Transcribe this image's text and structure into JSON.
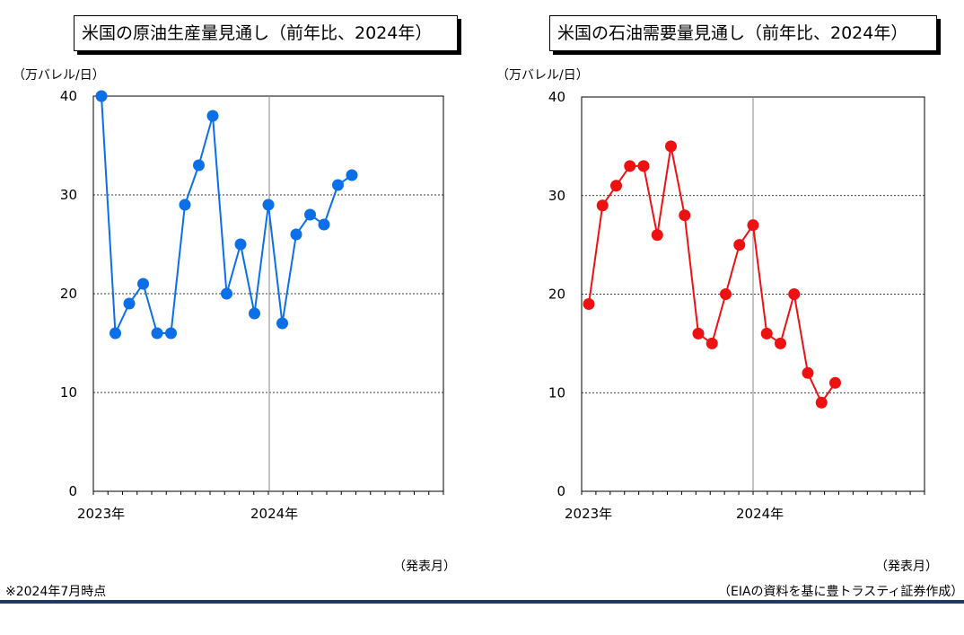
{
  "chart_data": [
    {
      "type": "line",
      "title": "米国の原油生産量見通し（前年比、2024年）",
      "ylabel": "（万バレル/日）",
      "xlabel": "（発表月）",
      "ylim": [
        0,
        40
      ],
      "yticks": [
        0,
        10,
        20,
        30,
        40
      ],
      "x_tick_labels": [
        "2023年",
        "2024年"
      ],
      "grid": true,
      "color": "#0b6fe8",
      "series": [
        {
          "values": [
            40,
            16,
            19,
            21,
            16,
            16,
            29,
            33,
            38,
            20,
            25,
            18,
            29,
            17,
            26,
            28,
            27,
            31,
            32
          ]
        }
      ]
    },
    {
      "type": "line",
      "title": "米国の石油需要量見通し（前年比、2024年）",
      "ylabel": "（万バレル/日）",
      "xlabel": "（発表月）",
      "ylim": [
        0,
        40
      ],
      "yticks": [
        0,
        10,
        20,
        30,
        40
      ],
      "x_tick_labels": [
        "2023年",
        "2024年"
      ],
      "grid": true,
      "color": "#ee1111",
      "series": [
        {
          "values": [
            19,
            29,
            31,
            33,
            33,
            26,
            35,
            28,
            16,
            15,
            20,
            25,
            27,
            16,
            15,
            20,
            12,
            9,
            11
          ]
        }
      ]
    }
  ],
  "footer": {
    "note": "※2024年7月時点",
    "source": "（EIAの資料を基に豊トラスティ証券作成）"
  }
}
